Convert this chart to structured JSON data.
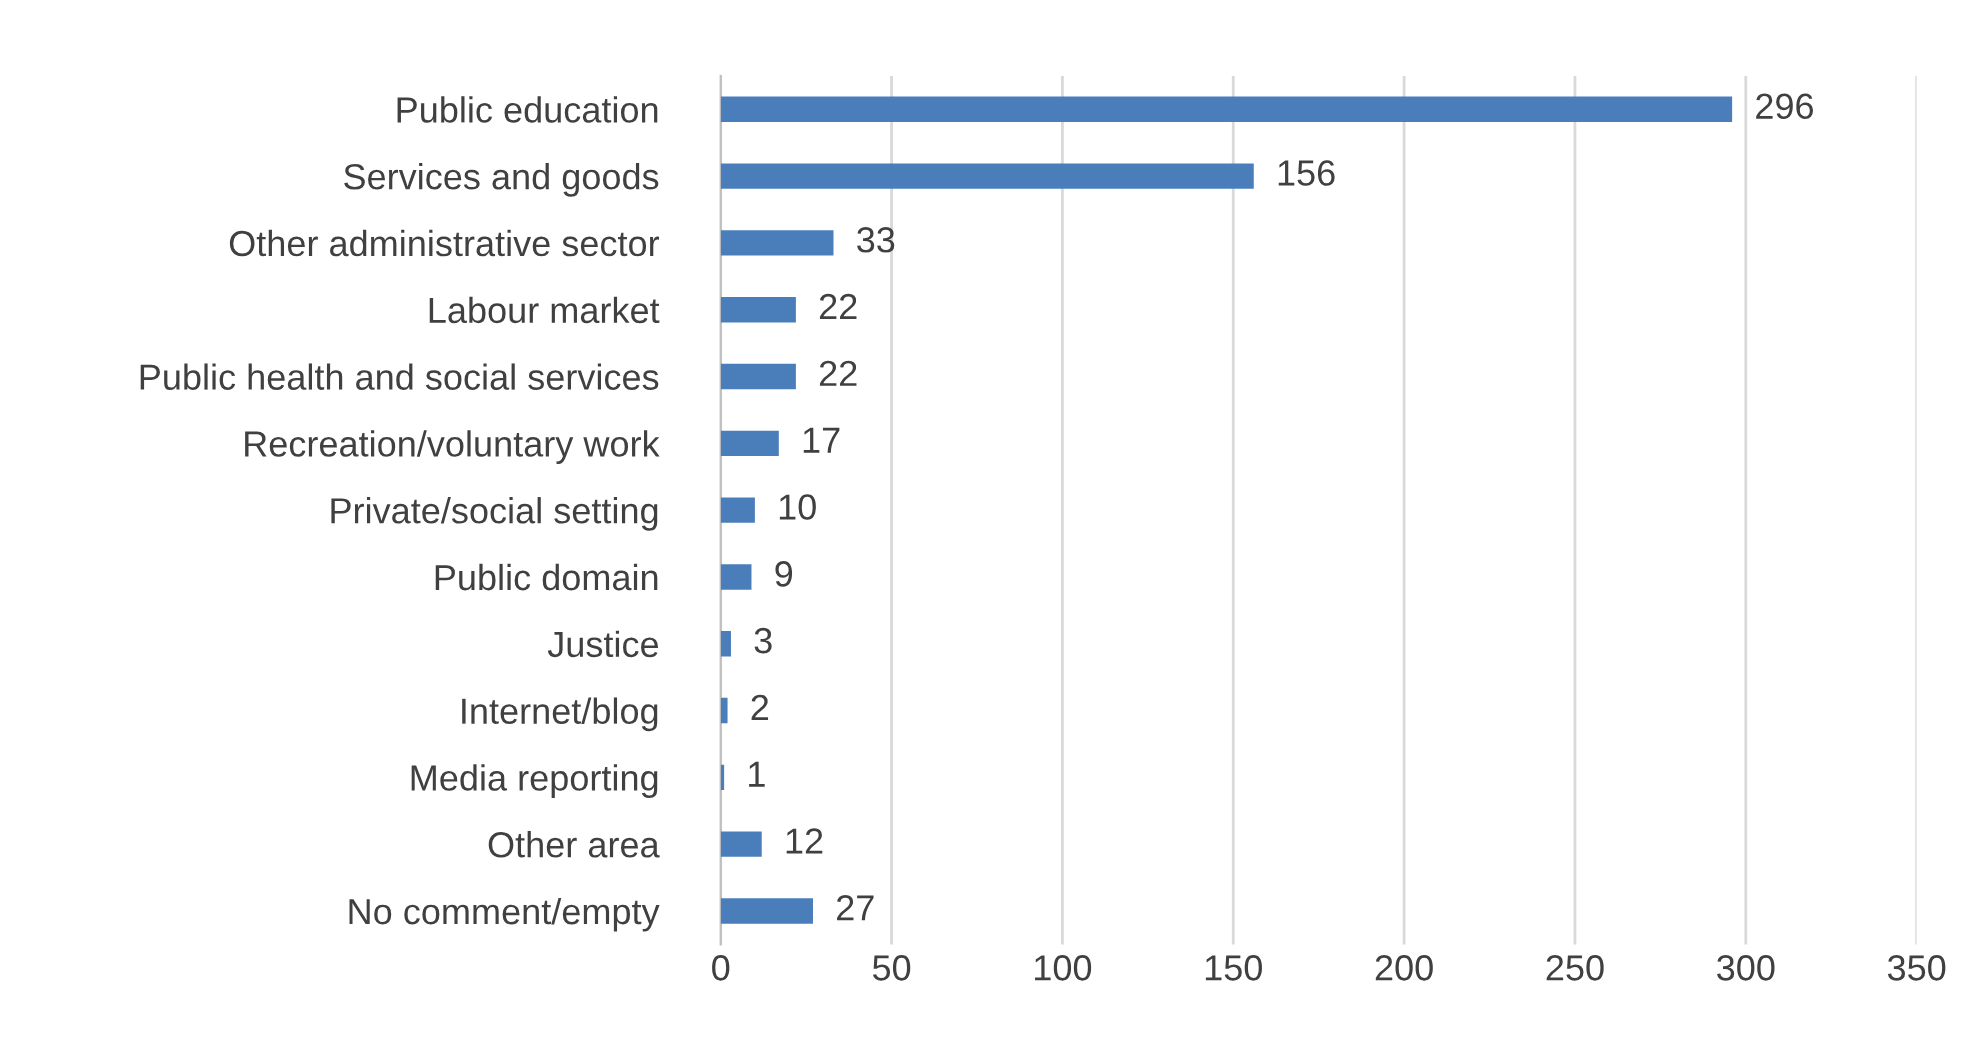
{
  "chart_data": {
    "type": "bar",
    "orientation": "horizontal",
    "categories": [
      "Public education",
      "Services and goods",
      "Other administrative sector",
      "Labour market",
      "Public health and social services",
      "Recreation/voluntary work",
      "Private/social setting",
      "Public domain",
      "Justice",
      "Internet/blog",
      "Media reporting",
      "Other area",
      "No comment/empty"
    ],
    "values": [
      296,
      156,
      33,
      22,
      22,
      17,
      10,
      9,
      3,
      2,
      1,
      12,
      27
    ],
    "color": "#4a7ebb",
    "xlim": [
      0,
      350
    ],
    "xticks": [
      0,
      50,
      100,
      150,
      200,
      250,
      300,
      350
    ],
    "grid": "x",
    "data_labels": true
  }
}
